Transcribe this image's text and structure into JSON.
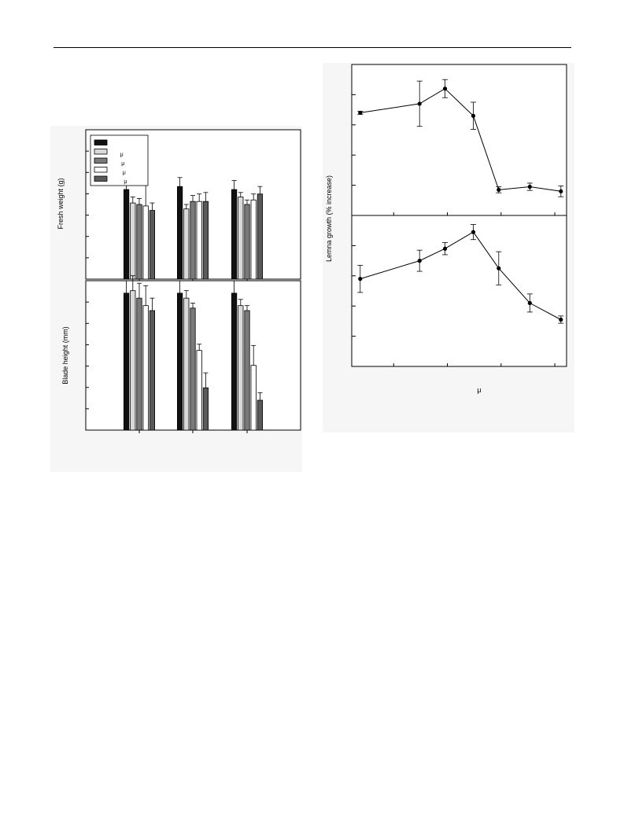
{
  "chart_data": [
    {
      "type": "bar",
      "panel": "top-left",
      "ylabel": "Fresh weight (g)",
      "legend": {
        "placement": "top-left",
        "entries": [
          "",
          "μ",
          "μ",
          "μ",
          "μ"
        ],
        "colors": [
          "#111111",
          "#d9d9d9",
          "#7a7a7a",
          "#ffffff",
          "#5a5a5a"
        ]
      },
      "groups": 3,
      "series": [
        {
          "values": [
            0.6,
            0.62,
            0.6
          ],
          "errors": [
            0.06,
            0.06,
            0.06
          ],
          "color": "#111111"
        },
        {
          "values": [
            0.51,
            0.47,
            0.55
          ],
          "errors": [
            0.04,
            0.03,
            0.03
          ],
          "color": "#d9d9d9"
        },
        {
          "values": [
            0.5,
            0.52,
            0.5
          ],
          "errors": [
            0.04,
            0.04,
            0.03
          ],
          "color": "#7a7a7a"
        },
        {
          "values": [
            0.49,
            0.52,
            0.53
          ],
          "errors": [
            0.16,
            0.05,
            0.04
          ],
          "color": "#ffffff"
        },
        {
          "values": [
            0.46,
            0.52,
            0.57
          ],
          "errors": [
            0.05,
            0.06,
            0.05
          ],
          "color": "#5a5a5a"
        }
      ],
      "ylim": [
        0,
        1.0
      ]
    },
    {
      "type": "bar",
      "panel": "bottom-left",
      "ylabel": "Blade height (mm)",
      "groups": 3,
      "series": [
        {
          "values": [
            5.5,
            5.5,
            5.5
          ],
          "errors": [
            0.5,
            0.5,
            0.5
          ],
          "color": "#111111"
        },
        {
          "values": [
            5.6,
            5.3,
            5.0
          ],
          "errors": [
            0.6,
            0.3,
            0.25
          ],
          "color": "#d9d9d9"
        },
        {
          "values": [
            5.3,
            4.9,
            4.8
          ],
          "errors": [
            0.6,
            0.2,
            0.2
          ],
          "color": "#7a7a7a"
        },
        {
          "values": [
            5.0,
            3.2,
            2.6
          ],
          "errors": [
            0.8,
            0.25,
            0.8
          ],
          "color": "#ffffff"
        },
        {
          "values": [
            4.8,
            1.7,
            1.2
          ],
          "errors": [
            0.5,
            0.6,
            0.3
          ],
          "color": "#5a5a5a"
        }
      ],
      "ylim": [
        0,
        6
      ]
    },
    {
      "type": "line",
      "panel": "top-right",
      "ylabel": "Lemna growth (% increase)",
      "x": [
        0.15,
        1.2,
        1.65,
        2.15,
        2.6,
        3.15,
        3.7
      ],
      "y": [
        3.4,
        3.7,
        4.2,
        3.3,
        0.85,
        0.95,
        0.8
      ],
      "err": [
        0.05,
        0.75,
        0.3,
        0.45,
        0.1,
        0.12,
        0.18
      ],
      "xlim": [
        0,
        3.8
      ],
      "ylim": [
        0,
        5
      ]
    },
    {
      "type": "line",
      "panel": "bottom-right",
      "xlabel": "μ",
      "x": [
        0.15,
        1.2,
        1.65,
        2.15,
        2.6,
        3.15,
        3.7
      ],
      "y": [
        2.9,
        3.5,
        3.9,
        4.45,
        3.25,
        2.1,
        1.55
      ],
      "err": [
        0.45,
        0.35,
        0.2,
        0.25,
        0.55,
        0.3,
        0.12
      ],
      "xlim": [
        0,
        3.8
      ],
      "ylim": [
        0,
        5
      ]
    }
  ]
}
